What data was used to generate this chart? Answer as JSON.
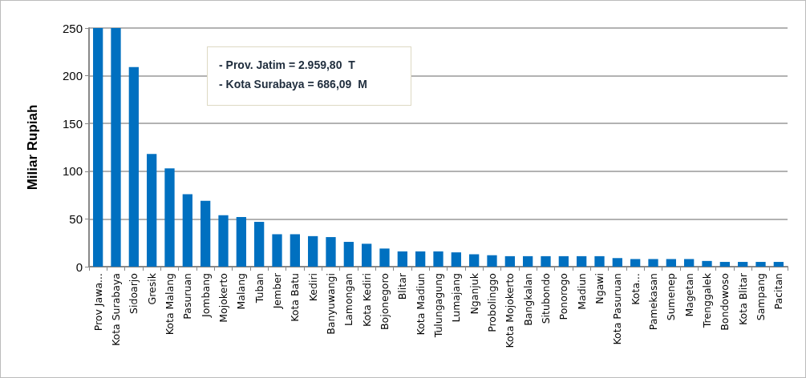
{
  "chart_data": {
    "type": "bar",
    "ylabel": "Miliar Rupiah",
    "categories": [
      "Prov Jawa...",
      "Kota Surabaya",
      "Sidoarjo",
      "Gresik",
      "Kota Malang",
      "Pasuruan",
      "Jombang",
      "Mojokerto",
      "Malang",
      "Tuban",
      "Jember",
      "Kota Batu",
      "Kediri",
      "Banyuwangi",
      "Lamongan",
      "Kota Kediri",
      "Bojonegoro",
      "Blitar",
      "Kota Madiun",
      "Tulungagung",
      "Lumajang",
      "Nganjuk",
      "Probolinggo",
      "Kota Mojokerto",
      "Bangkalan",
      "Situbondo",
      "Ponorogo",
      "Madiun",
      "Ngawi",
      "Kota Pasuruan",
      "Kota...",
      "Pamekasan",
      "Sumenep",
      "Magetan",
      "Trenggalek",
      "Bondowoso",
      "Kota Blitar",
      "Sampang",
      "Pacitan"
    ],
    "values": [
      250,
      250,
      209,
      118,
      103,
      76,
      69,
      54,
      52,
      47,
      34,
      34,
      32,
      31,
      26,
      24,
      19,
      16,
      16,
      16,
      15,
      13,
      12,
      11,
      11,
      11,
      11,
      11,
      11,
      9,
      8,
      8,
      8,
      8,
      6,
      5,
      5,
      5,
      5
    ],
    "color": "#0070c0",
    "ylim": [
      0,
      250
    ],
    "yticks": [
      0,
      50,
      100,
      150,
      200,
      250
    ],
    "grid": "y",
    "annotations": [
      "- Prov. Jatim = 2.959,80  T",
      "- Kota Surabaya = 686,09  M"
    ]
  }
}
